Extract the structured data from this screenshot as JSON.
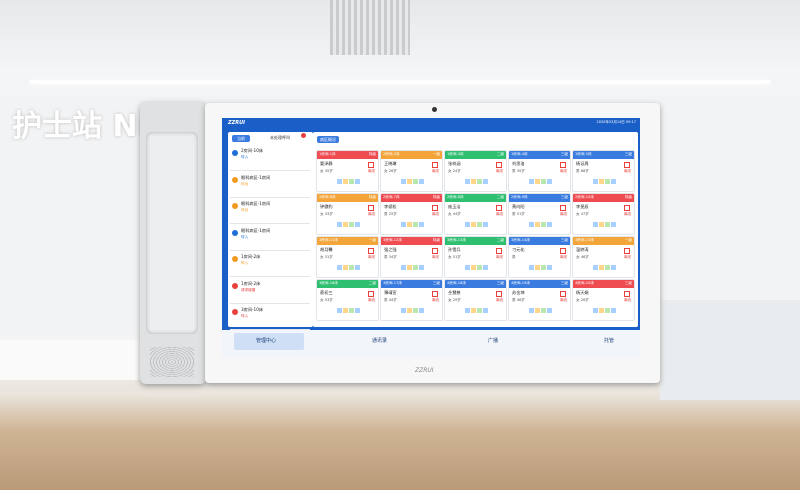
{
  "wall_sign": "护士站 Nu",
  "screen": {
    "logo": "ZZRUI",
    "datetime": "2020年03月14日 09:17",
    "tabs": [
      "当前",
      "未处理呼叫"
    ],
    "calls": [
      {
        "title": "2房间-10床",
        "action": "呼入",
        "color": "#1e6fd9"
      },
      {
        "title": "眼科病区-1房间",
        "action": "呼出",
        "color": "#f29a1f"
      },
      {
        "title": "眼科病区-1房间",
        "action": "呼出",
        "color": "#f29a1f"
      },
      {
        "title": "眼科病区-1房间",
        "action": "呼入",
        "color": "#1e6fd9"
      },
      {
        "title": "1房间-2床",
        "action": "呼入",
        "color": "#f29a1f"
      },
      {
        "title": "1房间-2床",
        "action": "请求增援",
        "color": "#e8413c"
      },
      {
        "title": "3房间-10床",
        "action": "呼入",
        "color": "#e8413c"
      }
    ],
    "ward_button": "病区概况",
    "beds": [
      {
        "room": "1房间-1床",
        "level": "特级",
        "name": "晏泽静",
        "info": "女 35岁",
        "status": "离线",
        "color": "#ef4c52"
      },
      {
        "room": "2房间-2床",
        "level": "一级",
        "name": "王晓琳",
        "info": "女 26岁",
        "status": "离线",
        "color": "#f4a53a"
      },
      {
        "room": "1房间-3床",
        "level": "二级",
        "name": "张梓涵",
        "info": "女 24岁",
        "status": "离线",
        "color": "#2fbf71"
      },
      {
        "room": "1房间-4床",
        "level": "三级",
        "name": "刘思洛",
        "info": "男 35岁",
        "status": "离线",
        "color": "#3a7be0"
      },
      {
        "room": "1房间-5床",
        "level": "三级",
        "name": "杨证周",
        "info": "男 68岁",
        "status": "离线",
        "color": "#3a7be0"
      },
      {
        "room": "2房间-6床",
        "level": "特级",
        "name": "钟傲豹",
        "info": "女 33岁",
        "status": "离线",
        "color": "#f4a53a"
      },
      {
        "room": "2房间-7床",
        "level": "特级",
        "name": "李斌松",
        "info": "男 25岁",
        "status": "离线",
        "color": "#ef4c52"
      },
      {
        "room": "2房间-8床",
        "level": "二级",
        "name": "庞玉洁",
        "info": "女 44岁",
        "status": "离线",
        "color": "#2fbf71"
      },
      {
        "room": "2房间-9床",
        "level": "三级",
        "name": "黄向阳",
        "info": "男 51岁",
        "status": "离线",
        "color": "#3a7be0"
      },
      {
        "room": "2房间-10床",
        "level": "特级",
        "name": "李旻辰",
        "info": "女 47岁",
        "status": "离线",
        "color": "#ef4c52"
      },
      {
        "room": "3房间-11床",
        "level": "一级",
        "name": "胡月馨",
        "info": "女 31岁",
        "status": "离线",
        "color": "#f4a53a"
      },
      {
        "room": "3房间-12床",
        "level": "特级",
        "name": "强之强",
        "info": "男 34岁",
        "status": "离线",
        "color": "#ef4c52"
      },
      {
        "room": "3房间-13床",
        "level": "二级",
        "name": "孙雪兵",
        "info": "女 51岁",
        "status": "离线",
        "color": "#2fbf71"
      },
      {
        "room": "3房间-14床",
        "level": "三级",
        "name": "刁元化",
        "info": "男",
        "status": "离线",
        "color": "#3a7be0"
      },
      {
        "room": "3房间-15床",
        "level": "一级",
        "name": "温婷涛",
        "info": "女 46岁",
        "status": "离线",
        "color": "#f4a53a"
      },
      {
        "room": "3房间-16床",
        "level": "二级",
        "name": "蔡初三",
        "info": "女 53岁",
        "status": "离线",
        "color": "#2fbf71"
      },
      {
        "room": "3房间-17床",
        "level": "三级",
        "name": "薄靖宣",
        "info": "男 44岁",
        "status": "离线",
        "color": "#3a7be0"
      },
      {
        "room": "4房间-18床",
        "level": "三级",
        "name": "仝慧慈",
        "info": "女 29岁",
        "status": "离线",
        "color": "#3a7be0"
      },
      {
        "room": "4房间-19床",
        "level": "三级",
        "name": "苏金坤",
        "info": "男 46岁",
        "status": "离线",
        "color": "#3a7be0"
      },
      {
        "room": "4房间-20床",
        "level": "三级",
        "name": "杨天娟",
        "info": "女 26岁",
        "status": "离线",
        "color": "#ef4c52"
      }
    ],
    "nav": [
      "管理中心",
      "通讯录",
      "广播",
      "托管"
    ]
  },
  "device_logo": "ZZRUI"
}
